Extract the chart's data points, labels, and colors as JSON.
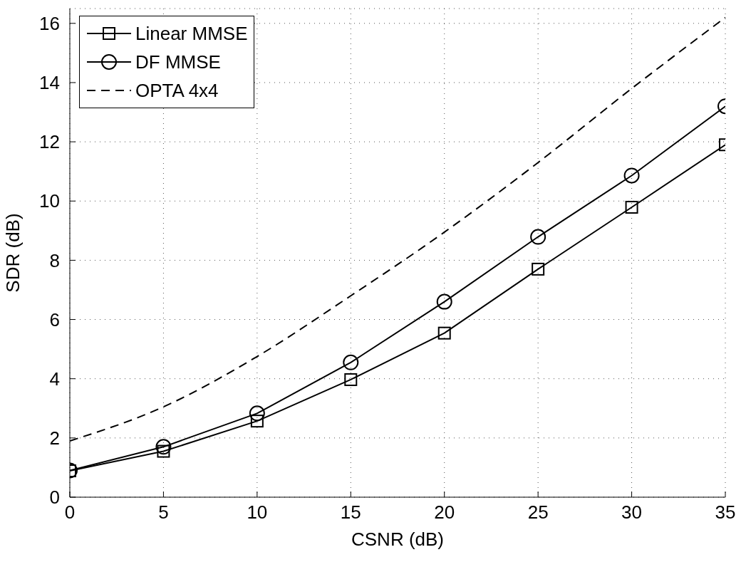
{
  "chart_data": {
    "type": "line",
    "xlabel": "CSNR (dB)",
    "ylabel": "SDR (dB)",
    "x": [
      0,
      5,
      10,
      15,
      20,
      25,
      30,
      35
    ],
    "series": [
      {
        "name": "Linear MMSE",
        "color": "#000000",
        "marker": "square",
        "line_style": "solid",
        "values": [
          0.89,
          1.55,
          2.57,
          3.97,
          5.54,
          7.7,
          9.79,
          11.9
        ]
      },
      {
        "name": "DF MMSE",
        "color": "#000000",
        "marker": "circle",
        "line_style": "solid",
        "values": [
          0.9,
          1.7,
          2.83,
          4.55,
          6.6,
          8.79,
          10.86,
          13.2
        ]
      },
      {
        "name": "OPTA 4x4",
        "color": "#000000",
        "marker": "none",
        "line_style": "dashed",
        "values": [
          1.9,
          3.05,
          4.75,
          6.8,
          8.95,
          11.3,
          13.8,
          16.2
        ]
      }
    ],
    "xlim": [
      0,
      35
    ],
    "xticks": [
      0,
      5,
      10,
      15,
      20,
      25,
      30,
      35
    ],
    "ylim": [
      0,
      16.5
    ],
    "yticks": [
      0,
      2,
      4,
      6,
      8,
      10,
      12,
      14,
      16
    ],
    "grid": true,
    "legend": "top left"
  }
}
